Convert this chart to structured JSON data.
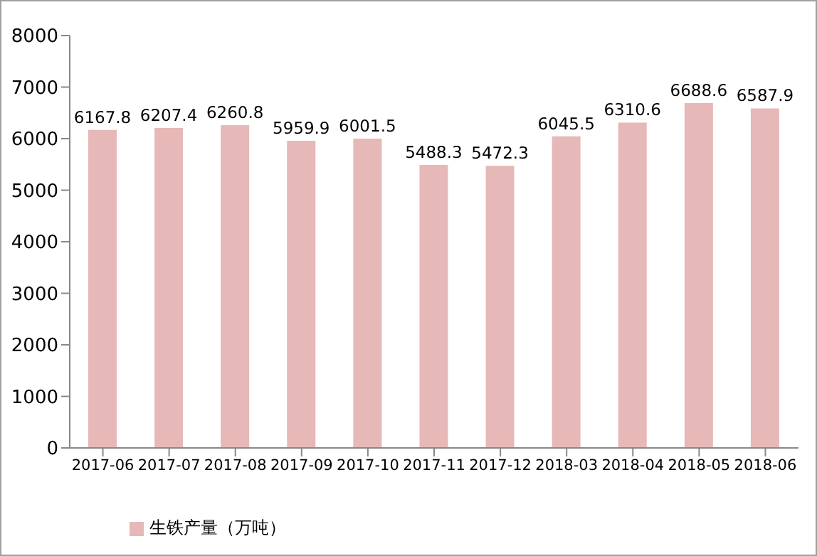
{
  "chart_data": {
    "type": "bar",
    "categories": [
      "2017-06",
      "2017-07",
      "2017-08",
      "2017-09",
      "2017-10",
      "2017-11",
      "2017-12",
      "2018-03",
      "2018-04",
      "2018-05",
      "2018-06"
    ],
    "series": [
      {
        "name": "生铁产量（万吨）",
        "color": "#e6b8b7",
        "values": [
          6167.8,
          6207.4,
          6260.8,
          5959.9,
          6001.5,
          5488.3,
          5472.3,
          6045.5,
          6310.6,
          6688.6,
          6587.9
        ]
      }
    ],
    "ylim": [
      0,
      8000
    ],
    "yticks": [
      0,
      1000,
      2000,
      3000,
      4000,
      5000,
      6000,
      7000,
      8000
    ],
    "data_labels": true,
    "legend": "bottom left"
  }
}
